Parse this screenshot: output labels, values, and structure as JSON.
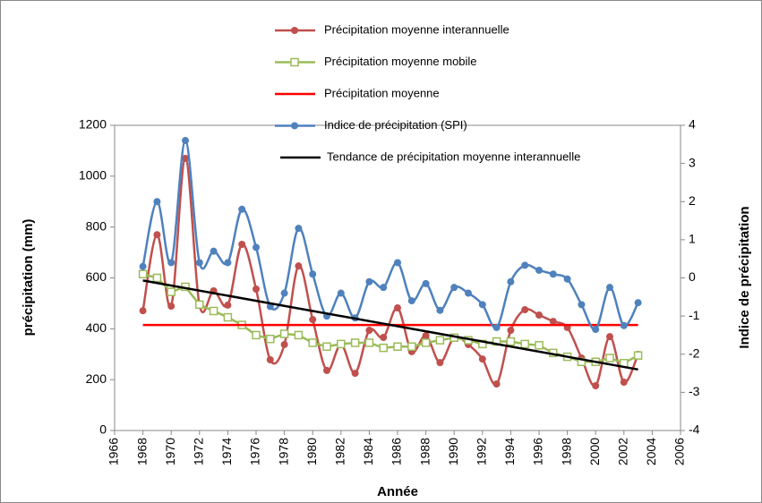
{
  "chart_data": {
    "type": "line",
    "x_label": "Année",
    "y_label": "précipitation (mm)",
    "y2_label": "Indice de précipitation",
    "legend": "top",
    "xlim": [
      1966,
      2006
    ],
    "xticks": [
      1966,
      1968,
      1970,
      1972,
      1974,
      1976,
      1978,
      1980,
      1982,
      1984,
      1986,
      1988,
      1990,
      1992,
      1994,
      1996,
      1998,
      2000,
      2002,
      2004,
      2006
    ],
    "ylim": [
      0,
      1200
    ],
    "yticks": [
      0,
      200,
      400,
      600,
      800,
      1000,
      1200
    ],
    "y2lim": [
      -4,
      4
    ],
    "y2ticks": [
      -4,
      -3,
      -2,
      -1,
      0,
      1,
      2,
      3,
      4
    ],
    "x": [
      1968,
      1969,
      1970,
      1971,
      1972,
      1973,
      1974,
      1975,
      1976,
      1977,
      1978,
      1979,
      1980,
      1981,
      1982,
      1983,
      1984,
      1985,
      1986,
      1987,
      1988,
      1989,
      1990,
      1991,
      1992,
      1993,
      1994,
      1995,
      1996,
      1997,
      1998,
      1999,
      2000,
      2001,
      2002,
      2003
    ],
    "series": [
      {
        "name": "Précipitation moyenne interannuelle",
        "color": "#c0504d",
        "marker": "circle",
        "smooth": true,
        "values": [
          471,
          770,
          489,
          1070,
          493,
          549,
          493,
          732,
          556,
          278,
          338,
          647,
          436,
          236,
          338,
          225,
          394,
          366,
          482,
          310,
          373,
          267,
          366,
          338,
          281,
          183,
          394,
          475,
          454,
          429,
          405,
          285,
          176,
          369,
          190,
          299
        ]
      },
      {
        "name": "Précipitation moyenne mobile",
        "color": "#9bbb59",
        "marker": "square",
        "values": [
          615,
          600,
          545,
          565,
          495,
          470,
          445,
          415,
          375,
          360,
          380,
          375,
          345,
          330,
          340,
          345,
          345,
          325,
          330,
          330,
          345,
          355,
          365,
          355,
          340,
          350,
          350,
          340,
          335,
          305,
          290,
          270,
          270,
          285,
          265,
          295
        ]
      },
      {
        "name": "Précipitation moyenne",
        "color": "#ff0000",
        "x": [
          1968,
          2003
        ],
        "values": [
          415,
          415
        ]
      },
      {
        "name": "Indice de précipitation (SPI)",
        "color": "#4f81bd",
        "marker": "circle",
        "smooth": true,
        "axis": "y2",
        "values": [
          0.3,
          2.0,
          0.4,
          3.6,
          0.4,
          0.7,
          0.4,
          1.8,
          0.8,
          -0.75,
          -0.4,
          1.3,
          0.1,
          -1.0,
          -0.4,
          -1.05,
          -0.1,
          -0.25,
          0.4,
          -0.6,
          -0.15,
          -0.85,
          -0.25,
          -0.4,
          -0.7,
          -1.3,
          -0.1,
          0.33,
          0.2,
          0.1,
          -0.03,
          -0.7,
          -1.35,
          -0.25,
          -1.25,
          -0.65
        ]
      },
      {
        "name": "Tendance de précipitation moyenne interannuelle",
        "color": "#000000",
        "x": [
          1968,
          2003
        ],
        "values": [
          590,
          240
        ]
      }
    ]
  }
}
